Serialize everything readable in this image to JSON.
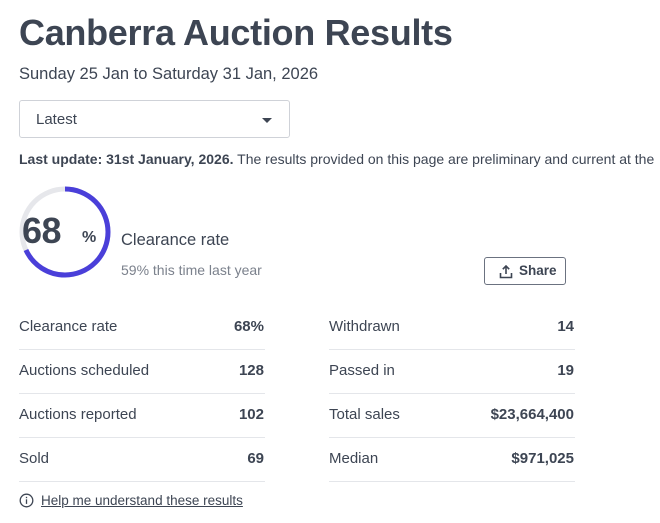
{
  "header": {
    "title": "Canberra Auction Results",
    "date_range": "Sunday 25 Jan to Saturday 31 Jan, 2026"
  },
  "period_select": {
    "value": "Latest"
  },
  "update": {
    "label": "Last update: 31st January, 2026.",
    "text": " The results provided on this page are preliminary and current at the"
  },
  "clearance": {
    "value": 68,
    "value_text": "68",
    "unit": "%",
    "label": "Clearance rate",
    "last_year": "59% this time last year",
    "ring_color": "#4a3fd9",
    "ring_track_color": "#e6e7eb"
  },
  "share_button": {
    "label": "Share"
  },
  "stats_left": [
    {
      "label": "Clearance rate",
      "value": "68%"
    },
    {
      "label": "Auctions scheduled",
      "value": "128"
    },
    {
      "label": "Auctions reported",
      "value": "102"
    },
    {
      "label": "Sold",
      "value": "69"
    }
  ],
  "stats_right": [
    {
      "label": "Withdrawn",
      "value": "14"
    },
    {
      "label": "Passed in",
      "value": "19"
    },
    {
      "label": "Total sales",
      "value": "$23,664,400"
    },
    {
      "label": "Median",
      "value": "$971,025"
    }
  ],
  "help": {
    "icon": "info-icon",
    "link": "Help me understand these results"
  }
}
